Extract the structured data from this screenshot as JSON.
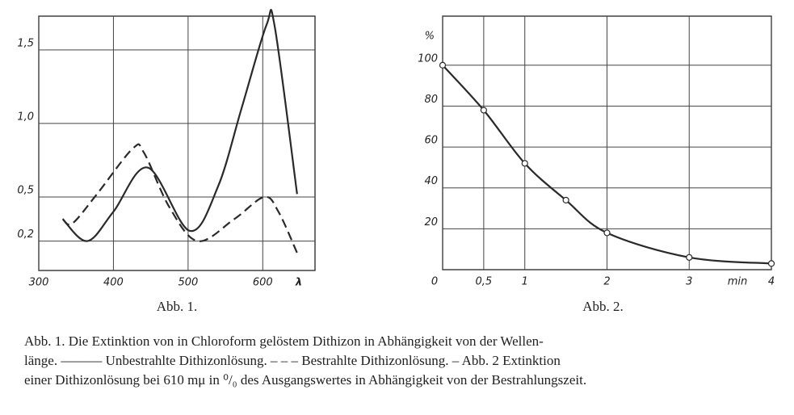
{
  "chart_data": [
    {
      "type": "line",
      "title": "Abb. 1.",
      "x_label": "λ",
      "xlim": [
        300,
        670
      ],
      "ylim": [
        0,
        1.73
      ],
      "xticks": [
        300,
        400,
        500,
        600
      ],
      "yticks": [
        {
          "value": 0.2,
          "label": "0,2"
        },
        {
          "value": 0.5,
          "label": "0,5"
        },
        {
          "value": 1.0,
          "label": "1,0"
        },
        {
          "value": 1.5,
          "label": "1,5"
        }
      ],
      "grid": true,
      "series": [
        {
          "color": "#2a2a2a",
          "dash": false,
          "markers": false,
          "x": [
            332,
            365,
            400,
            446,
            502,
            540,
            572,
            605,
            616,
            646
          ],
          "values": [
            0.35,
            0.2,
            0.4,
            0.7,
            0.27,
            0.57,
            1.11,
            1.67,
            1.66,
            0.52
          ]
        },
        {
          "color": "#2a2a2a",
          "dash": true,
          "markers": false,
          "x": [
            332,
            345,
            378,
            426,
            441,
            475,
            513,
            562,
            602,
            621,
            646
          ],
          "values": [
            0.35,
            0.32,
            0.52,
            0.83,
            0.8,
            0.43,
            0.2,
            0.35,
            0.5,
            0.4,
            0.12
          ]
        }
      ]
    },
    {
      "type": "line",
      "title": "Abb. 2.",
      "x_label": "min",
      "y_label": "%",
      "xlim": [
        0,
        4
      ],
      "ylim": [
        0,
        124
      ],
      "xticks": [
        0,
        {
          "value": 0.5,
          "label": "0,5"
        },
        1,
        2,
        3,
        4
      ],
      "yticks": [
        20,
        40,
        60,
        80,
        100
      ],
      "grid": true,
      "series": [
        {
          "color": "#2a2a2a",
          "dash": false,
          "markers": true,
          "x": [
            0,
            0.5,
            1,
            1.5,
            2,
            3,
            4
          ],
          "values": [
            100,
            78,
            52,
            34,
            18,
            6,
            3
          ]
        }
      ]
    }
  ],
  "caption": [
    "Abb. 1. Die Extinktion von in Chloroform gelöstem Dithizon in Abhängigkeit von der Wellen-",
    "länge. ——— Unbestrahlte Dithizonlösung. – – – Bestrahlte Dithizonlösung. – Abb. 2 Extinktion",
    "einer Dithizonlösung bei 610 mμ in ⁰/₀ des Ausgangswertes in Abhängigkeit von der Bestrahlungszeit."
  ]
}
